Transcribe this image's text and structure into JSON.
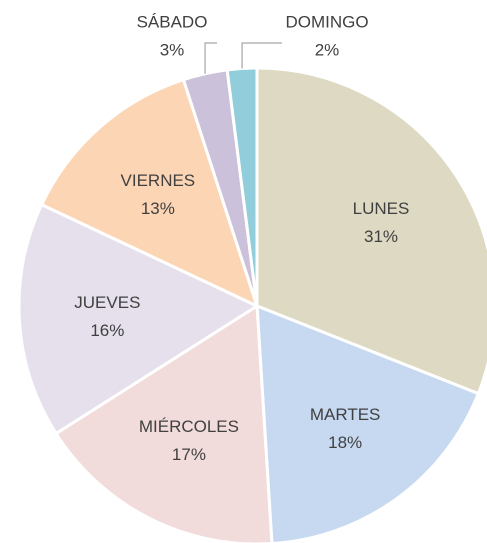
{
  "chart_data": {
    "type": "pie",
    "categories": [
      "LUNES",
      "MARTES",
      "MIÉRCOLES",
      "JUEVES",
      "VIERNES",
      "SÁBADO",
      "DOMINGO"
    ],
    "values": [
      31,
      18,
      17,
      16,
      13,
      3,
      2
    ],
    "value_labels": [
      "31%",
      "18%",
      "17%",
      "16%",
      "13%",
      "3%",
      "2%"
    ],
    "colors": [
      "#ddd9c3",
      "#c6d9f1",
      "#f2dcdb",
      "#e5e0ec",
      "#fcd5b5",
      "#ccc1da",
      "#92cddc"
    ]
  }
}
